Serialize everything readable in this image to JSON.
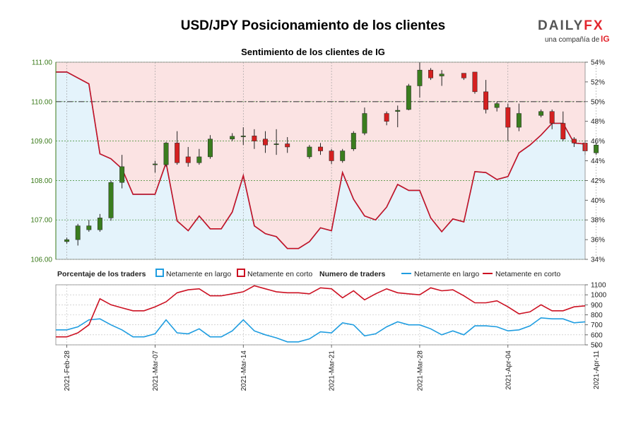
{
  "header": {
    "title": "USD/JPY Posicionamiento de los clientes",
    "subtitle": "Sentimiento de los clientes de IG",
    "logo_main": "DAILY",
    "logo_fx": "FX",
    "logo_sub": "una compañía de",
    "logo_ig": "IG"
  },
  "colors": {
    "long": "#1f9de0",
    "short": "#cc1122",
    "long_fill": "#e4f3fb",
    "short_fill": "#fbe3e3",
    "up": "#3a7d1e",
    "down": "#d42020",
    "price_axis": "#3a7a1a"
  },
  "chart_data": [
    {
      "type": "candlestick+area",
      "title": "Sentimiento de los clientes de IG",
      "y_left_ticks": [
        "106.00",
        "107.00",
        "108.00",
        "109.00",
        "110.00",
        "111.00"
      ],
      "y_left_range": [
        106.0,
        111.0
      ],
      "y_right_ticks": [
        "34%",
        "36%",
        "38%",
        "40%",
        "42%",
        "44%",
        "46%",
        "48%",
        "50%",
        "52%",
        "54%"
      ],
      "y_right_range": [
        34,
        54
      ],
      "reference_line": 50,
      "x_ticks": [
        "2021-Feb-28",
        "2021-Mar-07",
        "2021-Mar-14",
        "2021-Mar-21",
        "2021-Mar-28",
        "2021-Apr-04",
        "2021-Apr-11"
      ],
      "x_tick_index": [
        1,
        9,
        17,
        25,
        33,
        41,
        49
      ],
      "net_long_pct": [
        53.0,
        53.0,
        52.4,
        51.8,
        44.7,
        44.2,
        43.2,
        40.6,
        40.6,
        40.6,
        43.8,
        37.9,
        36.9,
        38.4,
        37.1,
        37.1,
        38.8,
        42.5,
        37.4,
        36.6,
        36.3,
        35.1,
        35.1,
        35.8,
        37.2,
        36.9,
        42.8,
        40.1,
        38.4,
        38.0,
        39.3,
        41.6,
        41.0,
        41.0,
        38.2,
        36.8,
        38.1,
        37.8,
        42.9,
        42.8,
        42.1,
        42.4,
        44.8,
        45.6,
        46.6,
        47.8,
        47.8,
        45.8,
        45.7
      ],
      "candles": [
        [
          1,
          106.45,
          106.5,
          106.55,
          106.4
        ],
        [
          2,
          106.5,
          106.85,
          106.9,
          106.35
        ],
        [
          3,
          106.75,
          106.85,
          107.0,
          106.7
        ],
        [
          4,
          106.75,
          107.05,
          107.15,
          106.7
        ],
        [
          5,
          107.05,
          107.95,
          108.0,
          106.98
        ],
        [
          6,
          107.95,
          108.35,
          108.65,
          107.8
        ],
        [
          9,
          108.4,
          108.42,
          108.5,
          108.2
        ],
        [
          10,
          108.4,
          108.95,
          108.98,
          108.35
        ],
        [
          11,
          108.95,
          108.45,
          109.25,
          108.4
        ],
        [
          12,
          108.6,
          108.45,
          108.85,
          108.35
        ],
        [
          13,
          108.45,
          108.6,
          108.8,
          108.4
        ],
        [
          14,
          108.6,
          109.05,
          109.15,
          108.55
        ],
        [
          16,
          109.05,
          109.12,
          109.2,
          109.0
        ],
        [
          17,
          109.12,
          109.13,
          109.35,
          108.9
        ],
        [
          18,
          109.13,
          109.0,
          109.3,
          108.8
        ],
        [
          19,
          109.05,
          108.9,
          109.25,
          108.7
        ],
        [
          20,
          108.92,
          108.93,
          109.3,
          108.65
        ],
        [
          21,
          108.93,
          108.85,
          109.1,
          108.7
        ],
        [
          23,
          108.6,
          108.85,
          108.9,
          108.55
        ],
        [
          24,
          108.85,
          108.75,
          108.95,
          108.65
        ],
        [
          25,
          108.75,
          108.5,
          108.8,
          108.42
        ],
        [
          26,
          108.5,
          108.75,
          108.8,
          108.45
        ],
        [
          27,
          108.8,
          109.2,
          109.25,
          108.75
        ],
        [
          28,
          109.2,
          109.7,
          109.85,
          109.15
        ],
        [
          30,
          109.7,
          109.5,
          109.75,
          109.4
        ],
        [
          31,
          109.75,
          109.78,
          109.9,
          109.35
        ],
        [
          32,
          109.8,
          110.4,
          110.45,
          109.78
        ],
        [
          33,
          110.4,
          110.8,
          111.0,
          110.1
        ],
        [
          34,
          110.8,
          110.6,
          110.85,
          110.55
        ],
        [
          35,
          110.65,
          110.7,
          110.8,
          110.4
        ],
        [
          37,
          110.72,
          110.6,
          110.72,
          110.55
        ],
        [
          38,
          110.75,
          110.25,
          110.75,
          110.2
        ],
        [
          39,
          110.25,
          109.8,
          110.55,
          109.7
        ],
        [
          40,
          109.85,
          109.95,
          110.0,
          109.75
        ],
        [
          41,
          109.85,
          109.35,
          109.95,
          109.0
        ],
        [
          42,
          109.35,
          109.7,
          109.95,
          109.25
        ],
        [
          44,
          109.65,
          109.75,
          109.8,
          109.6
        ],
        [
          45,
          109.75,
          109.45,
          109.8,
          109.3
        ],
        [
          46,
          109.45,
          109.05,
          109.75,
          109.0
        ],
        [
          47,
          109.05,
          108.95,
          109.1,
          108.85
        ],
        [
          48,
          108.95,
          108.75,
          109.0,
          108.65
        ],
        [
          49,
          108.7,
          108.9,
          108.95,
          108.65
        ]
      ]
    },
    {
      "type": "line",
      "series": [
        {
          "name": "Netamente en largo",
          "values": [
            650,
            650,
            680,
            750,
            760,
            700,
            650,
            580,
            580,
            610,
            750,
            620,
            610,
            660,
            580,
            580,
            640,
            750,
            640,
            600,
            570,
            530,
            530,
            560,
            630,
            620,
            720,
            700,
            590,
            610,
            680,
            730,
            700,
            700,
            660,
            600,
            640,
            600,
            690,
            690,
            680,
            640,
            650,
            690,
            770,
            760,
            760,
            720,
            730
          ]
        },
        {
          "name": "Netamente en corto",
          "values": [
            580,
            580,
            620,
            700,
            960,
            900,
            870,
            840,
            840,
            880,
            930,
            1020,
            1050,
            1060,
            990,
            990,
            1010,
            1030,
            1090,
            1060,
            1030,
            1020,
            1020,
            1010,
            1070,
            1060,
            970,
            1040,
            950,
            1010,
            1060,
            1020,
            1010,
            1000,
            1070,
            1040,
            1050,
            990,
            920,
            920,
            940,
            880,
            810,
            830,
            900,
            840,
            840,
            880,
            890
          ]
        }
      ],
      "y_ticks": [
        "500",
        "600",
        "700",
        "800",
        "900",
        "1000",
        "1100"
      ],
      "y_range": [
        500,
        1100
      ]
    }
  ],
  "legend": {
    "pct_label": "Porcentaje de los traders",
    "long_label": "Netamente en largo",
    "short_label": "Netamente en corto",
    "num_label": "Numero de traders",
    "num_long_label": "Netamente en largo",
    "num_short_label": "Netamente en corto"
  }
}
